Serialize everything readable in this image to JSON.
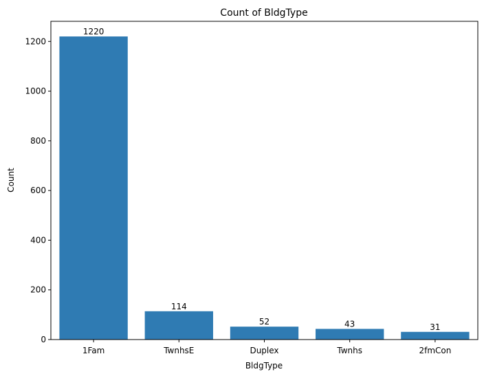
{
  "chart_data": {
    "type": "bar",
    "title": "Count of BldgType",
    "xlabel": "BldgType",
    "ylabel": "Count",
    "categories": [
      "1Fam",
      "TwnhsE",
      "Duplex",
      "Twnhs",
      "2fmCon"
    ],
    "values": [
      1220,
      114,
      52,
      43,
      31
    ],
    "data_labels": [
      "1220",
      "114",
      "52",
      "43",
      "31"
    ],
    "yticks": [
      0,
      200,
      400,
      600,
      800,
      1000,
      1200
    ],
    "ylim": [
      0,
      1281
    ],
    "grid": false,
    "bar_color": "#2f7bb3"
  }
}
